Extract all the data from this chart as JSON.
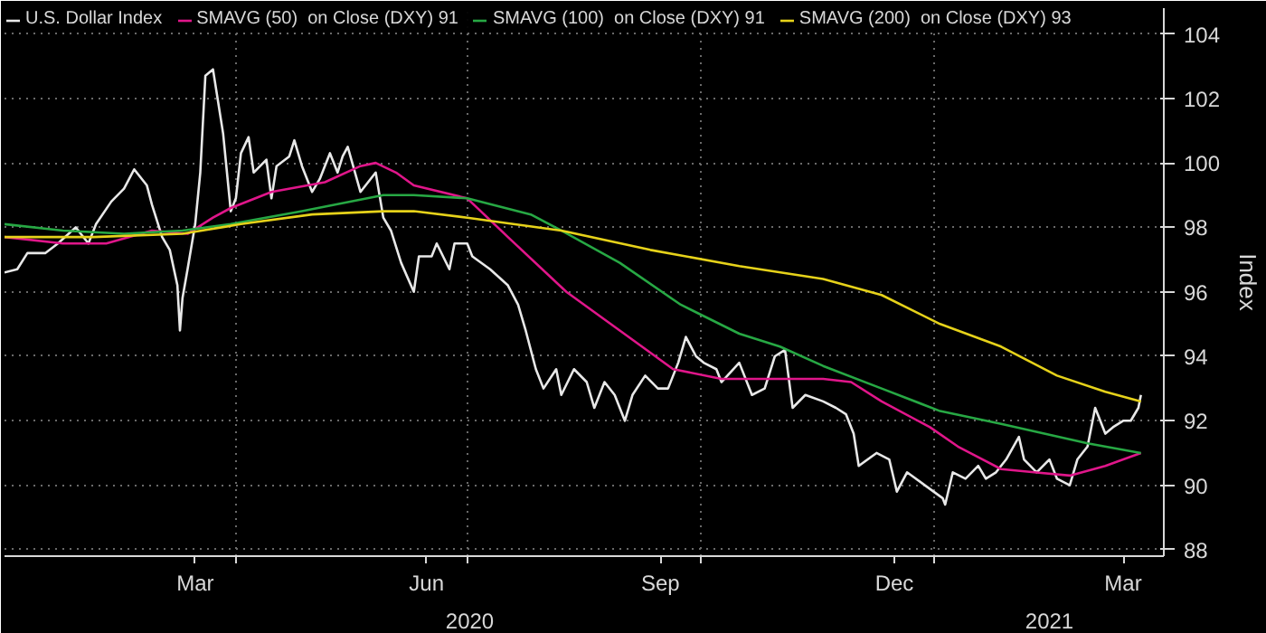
{
  "chart_data": {
    "type": "line",
    "ylabel": "Index",
    "xlim": [
      "2020-01-01",
      "2021-04-01"
    ],
    "ylim": [
      87.8,
      104.8
    ],
    "yticks": [
      88,
      90,
      92,
      94,
      96,
      98,
      100,
      102,
      104
    ],
    "xticks": [
      {
        "value": "2020-03-16",
        "label": "Mar"
      },
      {
        "value": "2020-06-15",
        "label": "Jun"
      },
      {
        "value": "2020-09-15",
        "label": "Sep"
      },
      {
        "value": "2020-12-16",
        "label": "Dec"
      },
      {
        "value": "2021-03-16",
        "label": "Mar"
      },
      {
        "value": "2020-04-01",
        "label": null
      },
      {
        "value": "2020-07-01",
        "label": null
      },
      {
        "value": "2020-10-01",
        "label": null
      },
      {
        "value": "2021-01-01",
        "label": null
      }
    ],
    "annotations": [
      "2020",
      "2021"
    ],
    "grid": true,
    "legend": "top left",
    "line_style": "solid",
    "marker": "none",
    "series": [
      {
        "name": "U.S. Dollar Index",
        "color": "#e8e8e8",
        "x": [
          "2020-01-01",
          "2020-01-06",
          "2020-01-10",
          "2020-01-17",
          "2020-01-22",
          "2020-01-29",
          "2020-02-03",
          "2020-02-06",
          "2020-02-12",
          "2020-02-17",
          "2020-02-21",
          "2020-02-26",
          "2020-02-28",
          "2020-03-03",
          "2020-03-06",
          "2020-03-09",
          "2020-03-10",
          "2020-03-11",
          "2020-03-13",
          "2020-03-16",
          "2020-03-18",
          "2020-03-20",
          "2020-03-23",
          "2020-03-25",
          "2020-03-27",
          "2020-03-30",
          "2020-04-01",
          "2020-04-03",
          "2020-04-06",
          "2020-04-08",
          "2020-04-13",
          "2020-04-15",
          "2020-04-17",
          "2020-04-22",
          "2020-04-24",
          "2020-04-27",
          "2020-05-01",
          "2020-05-04",
          "2020-05-08",
          "2020-05-11",
          "2020-05-13",
          "2020-05-15",
          "2020-05-20",
          "2020-05-26",
          "2020-05-29",
          "2020-06-01",
          "2020-06-05",
          "2020-06-10",
          "2020-06-12",
          "2020-06-17",
          "2020-06-19",
          "2020-06-24",
          "2020-06-26",
          "2020-07-01",
          "2020-07-03",
          "2020-07-10",
          "2020-07-17",
          "2020-07-21",
          "2020-07-24",
          "2020-07-28",
          "2020-07-31",
          "2020-08-05",
          "2020-08-07",
          "2020-08-12",
          "2020-08-17",
          "2020-08-20",
          "2020-08-24",
          "2020-08-28",
          "2020-09-01",
          "2020-09-04",
          "2020-09-09",
          "2020-09-14",
          "2020-09-18",
          "2020-09-22",
          "2020-09-25",
          "2020-09-29",
          "2020-10-02",
          "2020-10-07",
          "2020-10-09",
          "2020-10-16",
          "2020-10-21",
          "2020-10-26",
          "2020-10-30",
          "2020-11-03",
          "2020-11-06",
          "2020-11-11",
          "2020-11-18",
          "2020-11-23",
          "2020-11-27",
          "2020-11-30",
          "2020-12-02",
          "2020-12-09",
          "2020-12-14",
          "2020-12-17",
          "2020-12-21",
          "2020-12-28",
          "2021-01-04",
          "2021-01-05",
          "2021-01-08",
          "2021-01-13",
          "2021-01-18",
          "2021-01-21",
          "2021-01-25",
          "2021-01-29",
          "2021-02-03",
          "2021-02-05",
          "2021-02-10",
          "2021-02-15",
          "2021-02-18",
          "2021-02-23",
          "2021-02-26",
          "2021-03-02",
          "2021-03-05",
          "2021-03-09",
          "2021-03-12",
          "2021-03-16",
          "2021-03-19",
          "2021-03-22",
          "2021-03-23"
        ],
        "values": [
          96.6,
          96.7,
          97.2,
          97.2,
          97.5,
          98.0,
          97.5,
          98.1,
          98.8,
          99.2,
          99.8,
          99.3,
          98.7,
          97.7,
          97.3,
          96.2,
          94.8,
          95.8,
          96.7,
          98.1,
          99.7,
          102.7,
          102.9,
          101.9,
          100.9,
          98.5,
          98.9,
          100.3,
          100.8,
          99.7,
          100.1,
          98.9,
          99.9,
          100.2,
          100.7,
          99.9,
          99.1,
          99.5,
          100.3,
          99.7,
          100.2,
          100.5,
          99.1,
          99.7,
          98.3,
          97.9,
          96.9,
          96.0,
          97.1,
          97.1,
          97.5,
          96.7,
          97.5,
          97.5,
          97.1,
          96.7,
          96.2,
          95.6,
          94.8,
          93.6,
          93.0,
          93.6,
          92.8,
          93.6,
          93.2,
          92.4,
          93.2,
          92.8,
          92.0,
          92.8,
          93.4,
          93.0,
          93.0,
          93.8,
          94.6,
          94.0,
          93.8,
          93.6,
          93.2,
          93.8,
          92.8,
          93.0,
          94.0,
          94.2,
          92.4,
          92.8,
          92.6,
          92.4,
          92.2,
          91.6,
          90.6,
          91.0,
          90.8,
          89.8,
          90.4,
          90.0,
          89.6,
          89.4,
          90.4,
          90.2,
          90.6,
          90.2,
          90.4,
          90.8,
          91.5,
          90.8,
          90.4,
          90.8,
          90.2,
          90.0,
          90.8,
          91.2,
          92.4,
          91.6,
          91.8,
          92.0,
          92.0,
          92.4,
          92.8
        ]
      },
      {
        "name": "SMAVG (50)  on Close (DXY) 91",
        "color": "#e0168a",
        "x": [
          "2020-01-01",
          "2020-01-24",
          "2020-02-10",
          "2020-02-28",
          "2020-03-13",
          "2020-03-23",
          "2020-03-30",
          "2020-04-15",
          "2020-05-06",
          "2020-05-20",
          "2020-05-26",
          "2020-06-03",
          "2020-06-10",
          "2020-07-01",
          "2020-07-17",
          "2020-08-09",
          "2020-08-30",
          "2020-09-20",
          "2020-10-09",
          "2020-11-18",
          "2020-11-29",
          "2020-12-11",
          "2020-12-30",
          "2021-01-10",
          "2021-01-27",
          "2021-02-09",
          "2021-02-23",
          "2021-03-09",
          "2021-03-23"
        ],
        "values": [
          97.7,
          97.5,
          97.5,
          97.9,
          97.8,
          98.3,
          98.6,
          99.1,
          99.4,
          99.9,
          100.0,
          99.7,
          99.3,
          98.9,
          97.7,
          96.0,
          94.8,
          93.6,
          93.3,
          93.3,
          93.2,
          92.6,
          91.8,
          91.2,
          90.5,
          90.4,
          90.3,
          90.6,
          91.0
        ]
      },
      {
        "name": "SMAVG (100)  on Close (DXY) 91",
        "color": "#27a844",
        "x": [
          "2020-01-01",
          "2020-01-24",
          "2020-02-17",
          "2020-03-11",
          "2020-03-30",
          "2020-04-27",
          "2020-05-29",
          "2020-06-10",
          "2020-07-01",
          "2020-07-26",
          "2020-08-07",
          "2020-08-30",
          "2020-09-23",
          "2020-10-16",
          "2020-11-01",
          "2020-11-18",
          "2020-12-11",
          "2021-01-03",
          "2021-01-27",
          "2021-02-13",
          "2021-03-02",
          "2021-03-23"
        ],
        "values": [
          98.1,
          97.9,
          97.8,
          97.9,
          98.1,
          98.5,
          99.0,
          99.0,
          98.9,
          98.4,
          97.9,
          96.9,
          95.6,
          94.7,
          94.3,
          93.7,
          93.0,
          92.3,
          91.9,
          91.6,
          91.3,
          91.0
        ]
      },
      {
        "name": "SMAVG (200)  on Close (DXY) 93",
        "color": "#e6d21a",
        "x": [
          "2020-01-01",
          "2020-02-05",
          "2020-03-11",
          "2020-04-03",
          "2020-05-01",
          "2020-05-29",
          "2020-06-10",
          "2020-07-01",
          "2020-08-07",
          "2020-09-11",
          "2020-10-16",
          "2020-11-18",
          "2020-12-11",
          "2021-01-03",
          "2021-01-27",
          "2021-02-18",
          "2021-03-09",
          "2021-03-23"
        ],
        "values": [
          97.7,
          97.7,
          97.8,
          98.1,
          98.4,
          98.5,
          98.5,
          98.3,
          97.9,
          97.3,
          96.8,
          96.4,
          95.9,
          95.0,
          94.3,
          93.4,
          92.9,
          92.6
        ]
      }
    ]
  }
}
